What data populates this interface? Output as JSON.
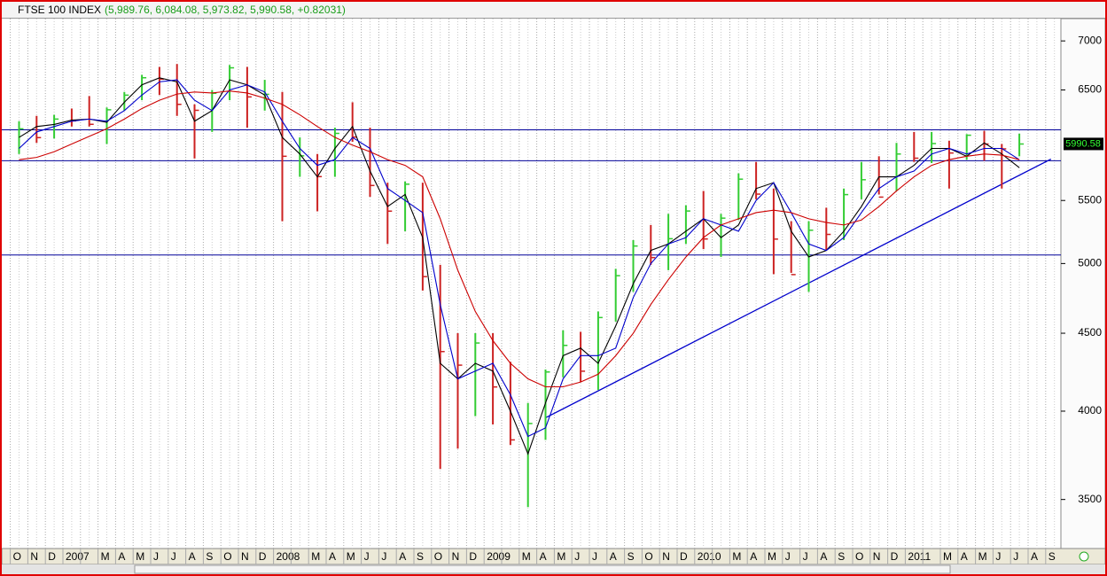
{
  "chart_data": {
    "type": "ohlc",
    "title": "FTSE 100 INDEX",
    "quote": "(5,989.76, 6,084.08, 5,973.82, 5,990.58, +0.82031)",
    "categories": [
      "O",
      "N",
      "D",
      "2007",
      null,
      "M",
      "A",
      "M",
      "J",
      "J",
      "A",
      "S",
      "O",
      "N",
      "D",
      "2008",
      null,
      "M",
      "A",
      "M",
      "J",
      "J",
      "A",
      "S",
      "O",
      "N",
      "D",
      "2009",
      null,
      "M",
      "A",
      "M",
      "J",
      "J",
      "A",
      "S",
      "O",
      "N",
      "D",
      "2010",
      null,
      "M",
      "A",
      "M",
      "J",
      "J",
      "A",
      "S",
      "O",
      "N",
      "D",
      "2011",
      null,
      "M",
      "A",
      "M",
      "J",
      "J",
      "A",
      "S"
    ],
    "high": [
      6200,
      6250,
      6260,
      6320,
      6440,
      6330,
      6480,
      6650,
      6730,
      6760,
      6360,
      6500,
      6750,
      6730,
      6600,
      6480,
      6050,
      5900,
      6140,
      6380,
      6140,
      5650,
      5660,
      5650,
      4990,
      4500,
      4500,
      4500,
      4310,
      4050,
      4260,
      4520,
      4510,
      4650,
      4960,
      5180,
      5300,
      5390,
      5460,
      5580,
      5390,
      5730,
      5830,
      5600,
      5330,
      5330,
      5440,
      5600,
      5830,
      5880,
      6000,
      6100,
      6100,
      6020,
      6080,
      6110,
      5990,
      6084,
      null,
      null
    ],
    "low": [
      5900,
      6000,
      6040,
      6150,
      6150,
      5990,
      6300,
      6400,
      6450,
      6250,
      5860,
      6100,
      6400,
      6140,
      6300,
      5330,
      5700,
      5410,
      5700,
      6010,
      5530,
      5150,
      5250,
      4800,
      3665,
      3780,
      3970,
      3920,
      3800,
      3460,
      3830,
      4210,
      4180,
      4130,
      4580,
      4790,
      4990,
      4950,
      5150,
      5110,
      5050,
      5340,
      5510,
      4920,
      4930,
      4790,
      5100,
      5180,
      5510,
      5550,
      5580,
      5830,
      5820,
      5600,
      5850,
      5840,
      5600,
      5880,
      null,
      null
    ],
    "close": [
      6129,
      6048,
      6220,
      6203,
      6171,
      6308,
      6449,
      6621,
      6607,
      6360,
      6303,
      6467,
      6721,
      6432,
      6457,
      5880,
      5884,
      5702,
      6087,
      6053,
      5626,
      5412,
      5637,
      4902,
      4377,
      4288,
      4434,
      4149,
      3830,
      3926,
      4244,
      4418,
      4249,
      4608,
      4909,
      5134,
      5045,
      5191,
      5413,
      5189,
      5355,
      5680,
      5553,
      5188,
      4917,
      5258,
      5225,
      5549,
      5675,
      5528,
      5900,
      5863,
      5994,
      5909,
      6070,
      5990,
      5946,
      5990,
      null,
      null
    ],
    "up_color": "#33cc33",
    "down_color": "#cc2222",
    "lines": [
      {
        "color": "#000000",
        "values": [
          6050,
          6150,
          6170,
          6210,
          6220,
          6190,
          6380,
          6550,
          6620,
          6580,
          6200,
          6300,
          6600,
          6550,
          6450,
          6050,
          5900,
          5700,
          5950,
          6150,
          5750,
          5450,
          5550,
          5200,
          4300,
          4200,
          4300,
          4250,
          4000,
          3750,
          4050,
          4350,
          4400,
          4300,
          4550,
          4850,
          5100,
          5150,
          5250,
          5350,
          5200,
          5300,
          5600,
          5650,
          5250,
          5050,
          5100,
          5250,
          5450,
          5700,
          5700,
          5800,
          5950,
          5950,
          5880,
          6000,
          5900,
          5780,
          null,
          null
        ]
      },
      {
        "color": "#0000cc",
        "values": [
          5950,
          6100,
          6150,
          6200,
          6220,
          6200,
          6300,
          6450,
          6580,
          6600,
          6400,
          6300,
          6500,
          6550,
          6480,
          6200,
          5950,
          5800,
          5850,
          6050,
          5950,
          5600,
          5500,
          5400,
          4700,
          4200,
          4250,
          4300,
          4100,
          3850,
          3900,
          4200,
          4350,
          4350,
          4400,
          4750,
          5000,
          5150,
          5200,
          5350,
          5300,
          5250,
          5500,
          5650,
          5400,
          5150,
          5100,
          5200,
          5400,
          5600,
          5700,
          5750,
          5900,
          5950,
          5900,
          5950,
          5950,
          5850,
          null,
          null
        ]
      },
      {
        "color": "#cc0000",
        "values": [
          5850,
          5870,
          5920,
          5990,
          6060,
          6130,
          6220,
          6320,
          6400,
          6460,
          6480,
          6470,
          6490,
          6470,
          6420,
          6360,
          6260,
          6150,
          6050,
          5980,
          5920,
          5850,
          5800,
          5700,
          5350,
          4950,
          4650,
          4450,
          4300,
          4200,
          4150,
          4150,
          4180,
          4230,
          4350,
          4500,
          4700,
          4880,
          5050,
          5200,
          5300,
          5350,
          5400,
          5420,
          5400,
          5350,
          5320,
          5300,
          5340,
          5450,
          5580,
          5700,
          5800,
          5850,
          5880,
          5900,
          5890,
          5850,
          null,
          null
        ]
      }
    ],
    "hlines": [
      6120,
      5840,
      5065
    ],
    "hline_color": "#000099",
    "trend_line": {
      "x": [
        30.5,
        59.3
      ],
      "values": [
        3960,
        5855
      ],
      "color": "#0000cc"
    },
    "last_value": 5990.58,
    "log_scale": true,
    "ylim": [
      3250,
      7240
    ],
    "yticks": [
      3500,
      4000,
      4500,
      5000,
      5500,
      6500,
      7000
    ],
    "grid": true
  }
}
